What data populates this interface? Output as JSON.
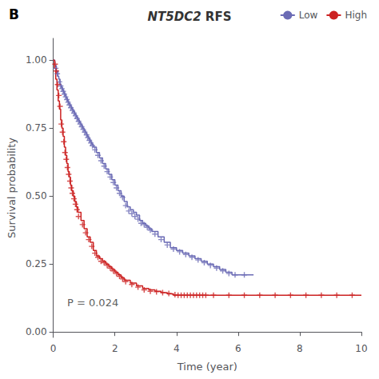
{
  "chart_data": {
    "type": "line",
    "title": "NT5DC2 RFS",
    "panel_label": "B",
    "xlabel": "Time (year)",
    "ylabel": "Survival probability",
    "xlim": [
      0,
      10
    ],
    "ylim": [
      -0.02,
      1.08
    ],
    "xticks": [
      0,
      2,
      4,
      6,
      8,
      10
    ],
    "yticks": [
      {
        "value": 0,
        "label": "0.00"
      },
      0.25,
      {
        "value": 0.5,
        "label": "0.50"
      },
      0.75,
      {
        "value": 1,
        "label": "1.00"
      }
    ],
    "grid": false,
    "legend": "upper right",
    "annotations": [
      {
        "text": "P = 0.024",
        "x": 0.45,
        "y": 0.09
      }
    ],
    "series": [
      {
        "name": "Low",
        "color": "#6B6BB5",
        "line_style": "step",
        "marker": "+",
        "x": [
          0,
          0.05,
          0.1,
          0.15,
          0.18,
          0.22,
          0.26,
          0.3,
          0.34,
          0.38,
          0.42,
          0.46,
          0.5,
          0.55,
          0.6,
          0.65,
          0.7,
          0.75,
          0.8,
          0.85,
          0.9,
          0.95,
          1.0,
          1.05,
          1.1,
          1.15,
          1.2,
          1.25,
          1.3,
          1.4,
          1.5,
          1.6,
          1.7,
          1.8,
          1.9,
          2.0,
          2.1,
          2.2,
          2.3,
          2.4,
          2.5,
          2.6,
          2.7,
          2.8,
          2.9,
          3.0,
          3.1,
          3.2,
          3.4,
          3.6,
          3.8,
          4.0,
          4.2,
          4.4,
          4.6,
          4.8,
          5.0,
          5.2,
          5.4,
          5.6,
          5.8,
          6.0,
          6.5
        ],
        "values": [
          1.0,
          0.98,
          0.96,
          0.94,
          0.93,
          0.91,
          0.9,
          0.89,
          0.88,
          0.87,
          0.86,
          0.85,
          0.84,
          0.83,
          0.82,
          0.81,
          0.8,
          0.79,
          0.78,
          0.77,
          0.76,
          0.75,
          0.74,
          0.73,
          0.72,
          0.71,
          0.7,
          0.69,
          0.68,
          0.66,
          0.64,
          0.62,
          0.6,
          0.58,
          0.56,
          0.54,
          0.52,
          0.5,
          0.48,
          0.46,
          0.45,
          0.44,
          0.43,
          0.41,
          0.4,
          0.39,
          0.38,
          0.37,
          0.35,
          0.33,
          0.31,
          0.3,
          0.29,
          0.28,
          0.27,
          0.26,
          0.25,
          0.24,
          0.23,
          0.22,
          0.21,
          0.21,
          0.21
        ],
        "censor_x": [
          0.08,
          0.13,
          0.2,
          0.24,
          0.28,
          0.32,
          0.36,
          0.4,
          0.44,
          0.48,
          0.52,
          0.57,
          0.62,
          0.67,
          0.72,
          0.77,
          0.82,
          0.87,
          0.92,
          0.97,
          1.02,
          1.08,
          1.12,
          1.17,
          1.22,
          1.27,
          1.35,
          1.45,
          1.55,
          1.65,
          1.75,
          1.85,
          1.95,
          2.05,
          2.15,
          2.25,
          2.35,
          2.45,
          2.55,
          2.65,
          2.75,
          2.85,
          2.95,
          3.05,
          3.15,
          3.3,
          3.5,
          3.7,
          3.9,
          4.1,
          4.3,
          4.5,
          4.7,
          4.9,
          5.1,
          5.3,
          5.5,
          5.7,
          5.9,
          6.2
        ],
        "censor_values": [
          0.97,
          0.95,
          0.92,
          0.905,
          0.895,
          0.885,
          0.875,
          0.865,
          0.855,
          0.845,
          0.835,
          0.825,
          0.815,
          0.805,
          0.795,
          0.785,
          0.775,
          0.765,
          0.755,
          0.745,
          0.735,
          0.725,
          0.715,
          0.705,
          0.695,
          0.685,
          0.67,
          0.65,
          0.63,
          0.61,
          0.59,
          0.57,
          0.55,
          0.53,
          0.51,
          0.495,
          0.465,
          0.445,
          0.435,
          0.425,
          0.415,
          0.4,
          0.395,
          0.385,
          0.375,
          0.36,
          0.34,
          0.32,
          0.305,
          0.295,
          0.285,
          0.275,
          0.265,
          0.255,
          0.245,
          0.235,
          0.225,
          0.215,
          0.21,
          0.21
        ]
      },
      {
        "name": "High",
        "color": "#CC2222",
        "line_style": "step",
        "marker": "+",
        "x": [
          0,
          0.04,
          0.08,
          0.12,
          0.16,
          0.2,
          0.24,
          0.28,
          0.32,
          0.36,
          0.4,
          0.44,
          0.48,
          0.52,
          0.56,
          0.6,
          0.65,
          0.7,
          0.75,
          0.8,
          0.9,
          1.0,
          1.1,
          1.2,
          1.3,
          1.4,
          1.5,
          1.6,
          1.7,
          1.8,
          1.9,
          2.0,
          2.1,
          2.2,
          2.3,
          2.5,
          2.7,
          2.9,
          3.1,
          3.3,
          3.5,
          3.7,
          3.9,
          4.0,
          4.1,
          4.2,
          4.4,
          4.6,
          4.8,
          5.0,
          5.5,
          6.0,
          6.5,
          7.0,
          7.5,
          8.0,
          8.5,
          9.0,
          9.5,
          10.0
        ],
        "values": [
          1.0,
          0.97,
          0.93,
          0.89,
          0.85,
          0.82,
          0.78,
          0.75,
          0.72,
          0.68,
          0.65,
          0.62,
          0.59,
          0.57,
          0.54,
          0.52,
          0.5,
          0.48,
          0.46,
          0.44,
          0.41,
          0.38,
          0.35,
          0.33,
          0.3,
          0.28,
          0.27,
          0.26,
          0.25,
          0.24,
          0.23,
          0.22,
          0.21,
          0.2,
          0.19,
          0.18,
          0.17,
          0.16,
          0.155,
          0.15,
          0.145,
          0.14,
          0.135,
          0.135,
          0.135,
          0.135,
          0.135,
          0.135,
          0.135,
          0.135,
          0.135,
          0.135,
          0.135,
          0.135,
          0.135,
          0.135,
          0.135,
          0.135,
          0.135,
          0.135
        ],
        "censor_x": [
          0.06,
          0.1,
          0.14,
          0.18,
          0.22,
          0.26,
          0.3,
          0.34,
          0.38,
          0.42,
          0.46,
          0.5,
          0.54,
          0.58,
          0.62,
          0.67,
          0.72,
          0.77,
          0.82,
          0.95,
          1.05,
          1.15,
          1.25,
          1.35,
          1.45,
          1.55,
          1.65,
          1.75,
          1.85,
          1.95,
          2.05,
          2.15,
          2.25,
          2.35,
          2.55,
          2.75,
          2.95,
          3.15,
          3.35,
          3.55,
          3.75,
          3.95,
          4.05,
          4.15,
          4.25,
          4.35,
          4.45,
          4.55,
          4.65,
          4.75,
          4.85,
          4.95,
          5.2,
          5.7,
          6.2,
          6.7,
          7.2,
          7.7,
          8.2,
          8.7,
          9.2,
          9.7
        ],
        "censor_values": [
          0.985,
          0.96,
          0.91,
          0.87,
          0.83,
          0.765,
          0.735,
          0.7,
          0.66,
          0.635,
          0.605,
          0.58,
          0.555,
          0.53,
          0.51,
          0.49,
          0.47,
          0.45,
          0.425,
          0.395,
          0.365,
          0.34,
          0.315,
          0.29,
          0.275,
          0.26,
          0.255,
          0.245,
          0.235,
          0.225,
          0.215,
          0.205,
          0.195,
          0.185,
          0.175,
          0.165,
          0.155,
          0.15,
          0.148,
          0.145,
          0.142,
          0.137,
          0.135,
          0.135,
          0.135,
          0.135,
          0.135,
          0.135,
          0.135,
          0.135,
          0.135,
          0.135,
          0.135,
          0.135,
          0.135,
          0.135,
          0.135,
          0.135,
          0.135,
          0.135,
          0.135,
          0.135
        ]
      }
    ]
  }
}
